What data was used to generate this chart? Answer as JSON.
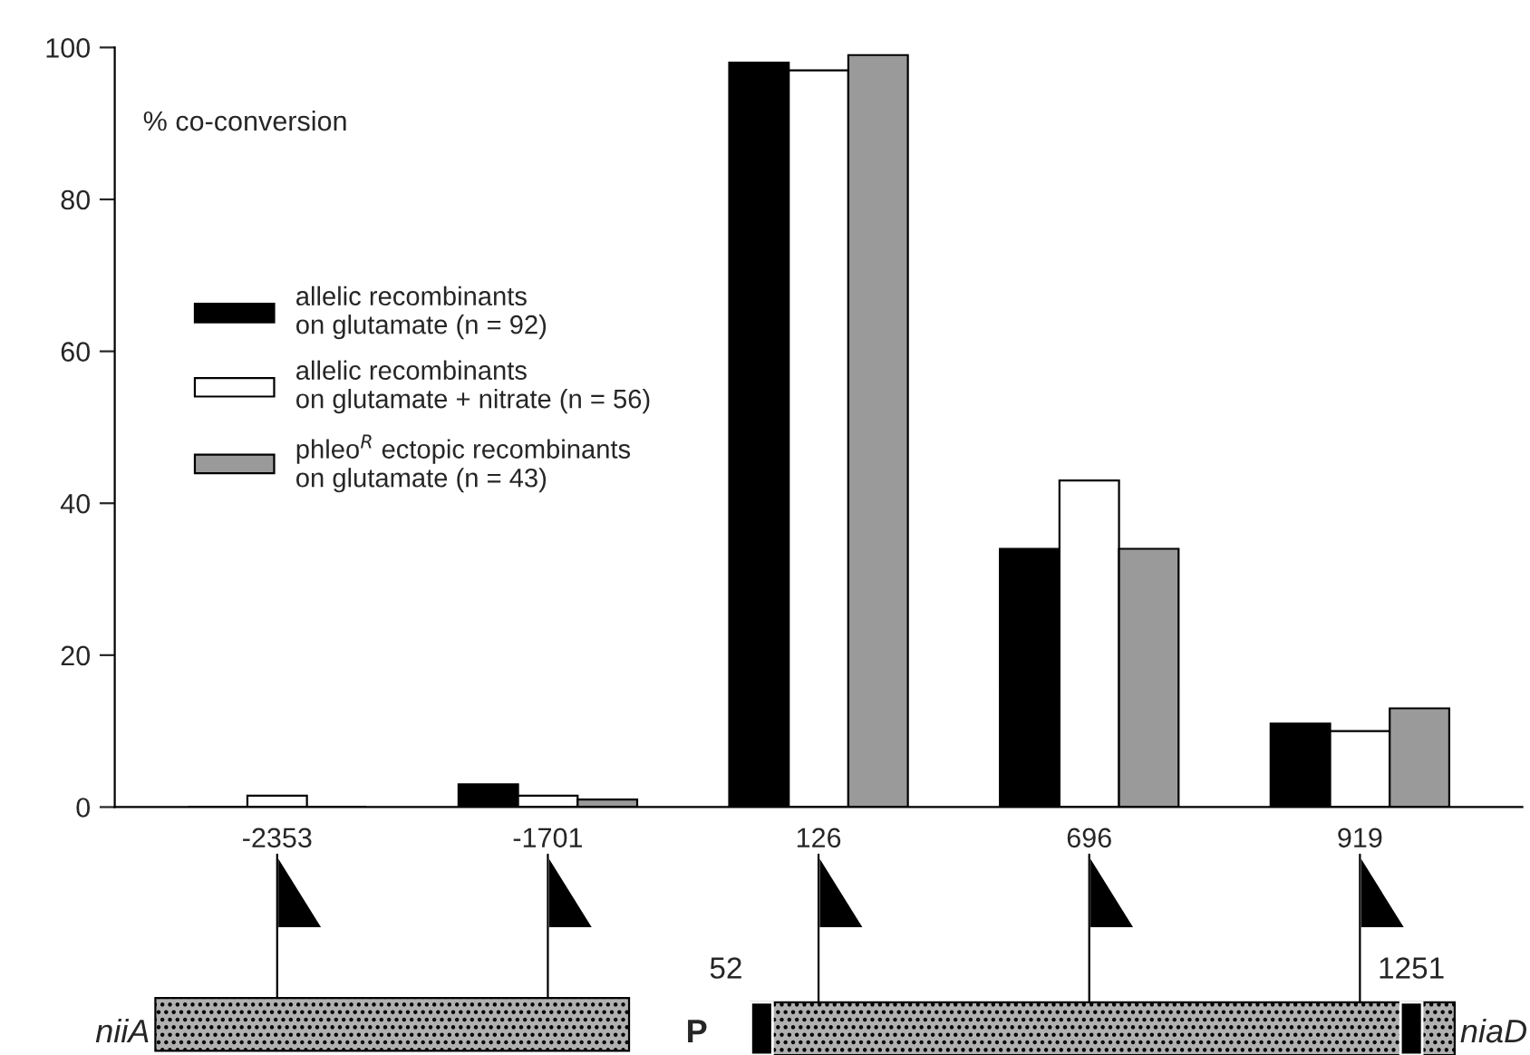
{
  "chart_data": {
    "type": "bar",
    "ylabel": "% co-conversion",
    "categories": [
      "-2353",
      "-1701",
      "126",
      "696",
      "919"
    ],
    "series": [
      {
        "name": "allelic recombinants\non glutamate (n = 92)",
        "color": "#000000",
        "values": [
          0,
          3,
          98,
          34,
          11
        ]
      },
      {
        "name": "allelic recombinants\non glutamate + nitrate (n = 56)",
        "color": "#ffffff",
        "values": [
          1.5,
          1.5,
          97,
          43,
          10
        ]
      },
      {
        "name": "phleo$^{R}$ ectopic recombinants\non glutamate (n = 43)",
        "color": "#9a9a9a",
        "values": [
          0,
          1,
          99,
          34,
          13
        ]
      }
    ],
    "ylim": [
      0,
      100
    ],
    "yticks": [
      0,
      20,
      40,
      60,
      80,
      100
    ],
    "grid": false,
    "legend": "left",
    "annotations": [
      "niiA",
      "P",
      "52",
      "1251",
      "niaD"
    ]
  }
}
